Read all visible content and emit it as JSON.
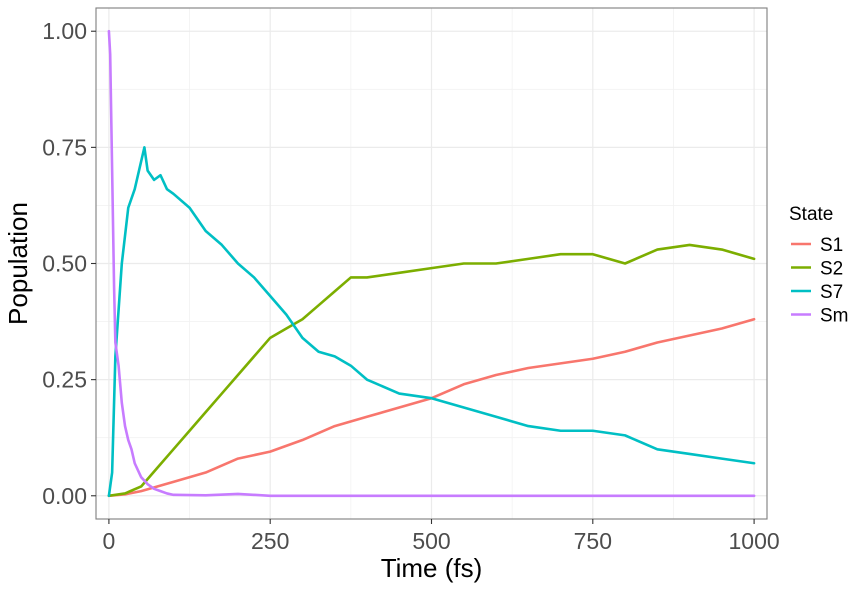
{
  "chart_data": {
    "type": "line",
    "xlabel": "Time (fs)",
    "ylabel": "Population",
    "xlim": [
      -20,
      1020
    ],
    "ylim": [
      -0.05,
      1.05
    ],
    "x_ticks": [
      0,
      250,
      500,
      750,
      1000
    ],
    "x_tick_labels": [
      "0",
      "250",
      "500",
      "750",
      "1000"
    ],
    "y_ticks": [
      0,
      0.25,
      0.5,
      0.75,
      1.0
    ],
    "y_tick_labels": [
      "0.00",
      "0.25",
      "0.50",
      "0.75",
      "1.00"
    ],
    "grid": true,
    "legend": {
      "title": "State",
      "position": "right"
    },
    "series": [
      {
        "name": "S1",
        "color": "#F8766D",
        "x": [
          0,
          25,
          50,
          75,
          100,
          150,
          200,
          250,
          300,
          350,
          400,
          450,
          500,
          550,
          600,
          650,
          700,
          750,
          800,
          850,
          900,
          950,
          1000
        ],
        "y": [
          0,
          0.003,
          0.01,
          0.02,
          0.03,
          0.05,
          0.08,
          0.095,
          0.12,
          0.15,
          0.17,
          0.19,
          0.21,
          0.24,
          0.26,
          0.275,
          0.285,
          0.295,
          0.31,
          0.33,
          0.345,
          0.36,
          0.38
        ]
      },
      {
        "name": "S2",
        "color": "#7CAE00",
        "x": [
          0,
          25,
          50,
          75,
          100,
          125,
          150,
          175,
          200,
          225,
          250,
          275,
          300,
          325,
          350,
          375,
          400,
          450,
          500,
          550,
          600,
          650,
          700,
          750,
          800,
          850,
          900,
          950,
          1000
        ],
        "y": [
          0,
          0.005,
          0.02,
          0.06,
          0.1,
          0.14,
          0.18,
          0.22,
          0.26,
          0.3,
          0.34,
          0.36,
          0.38,
          0.41,
          0.44,
          0.47,
          0.47,
          0.48,
          0.49,
          0.5,
          0.5,
          0.51,
          0.52,
          0.52,
          0.5,
          0.53,
          0.54,
          0.53,
          0.51
        ]
      },
      {
        "name": "S7",
        "color": "#00BFC4",
        "x": [
          0,
          5,
          10,
          20,
          30,
          40,
          50,
          55,
          60,
          70,
          80,
          90,
          100,
          125,
          150,
          175,
          200,
          225,
          250,
          275,
          300,
          325,
          350,
          375,
          400,
          450,
          500,
          550,
          600,
          650,
          700,
          750,
          800,
          850,
          900,
          950,
          1000
        ],
        "y": [
          0,
          0.05,
          0.3,
          0.5,
          0.62,
          0.66,
          0.72,
          0.75,
          0.7,
          0.68,
          0.69,
          0.66,
          0.65,
          0.62,
          0.57,
          0.54,
          0.5,
          0.47,
          0.43,
          0.39,
          0.34,
          0.31,
          0.3,
          0.28,
          0.25,
          0.22,
          0.21,
          0.19,
          0.17,
          0.15,
          0.14,
          0.14,
          0.13,
          0.1,
          0.09,
          0.08,
          0.07
        ]
      },
      {
        "name": "Sm",
        "color": "#C77CFF",
        "x": [
          0,
          2,
          5,
          8,
          10,
          15,
          20,
          25,
          30,
          35,
          40,
          50,
          60,
          70,
          80,
          90,
          100,
          150,
          200,
          250,
          1000
        ],
        "y": [
          1.0,
          0.95,
          0.7,
          0.45,
          0.33,
          0.28,
          0.2,
          0.15,
          0.12,
          0.1,
          0.07,
          0.04,
          0.025,
          0.015,
          0.01,
          0.005,
          0.002,
          0.001,
          0.004,
          0,
          0
        ]
      }
    ]
  }
}
